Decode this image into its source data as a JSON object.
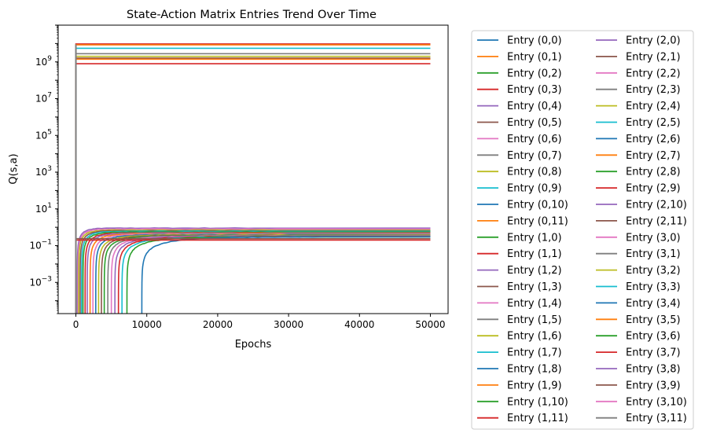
{
  "chart_data": {
    "type": "line",
    "title": "State-Action Matrix Entries Trend Over Time",
    "xlabel": "Epochs",
    "ylabel": "Q(s,a)",
    "xlim": [
      -2500,
      52500
    ],
    "ylim": [
      2e-05,
      100000000000
    ],
    "y_scale": "log",
    "grid": false,
    "legend_placement": "outside-right",
    "legend_columns": 2,
    "x_ticks": [
      0,
      10000,
      20000,
      30000,
      40000,
      50000
    ],
    "x_tick_labels": [
      "0",
      "10000",
      "20000",
      "30000",
      "40000",
      "50000"
    ],
    "y_ticks": [
      0.001,
      0.1,
      10,
      1000,
      100000,
      10000000,
      1000000000
    ],
    "y_tick_base": [
      "10",
      "10",
      "10",
      "10",
      "10",
      "10",
      "10"
    ],
    "y_tick_exp": [
      "−3",
      "−1",
      "1",
      "3",
      "5",
      "7",
      "9"
    ],
    "palette": [
      "#1f77b4",
      "#ff7f0e",
      "#2ca02c",
      "#d62728",
      "#9467bd",
      "#8c564b",
      "#e377c2",
      "#7f7f7f",
      "#bcbd22",
      "#17becf"
    ],
    "legend_entries": [
      "Entry (0,0)",
      "Entry (0,1)",
      "Entry (0,2)",
      "Entry (0,3)",
      "Entry (0,4)",
      "Entry (0,5)",
      "Entry (0,6)",
      "Entry (0,7)",
      "Entry (0,8)",
      "Entry (0,9)",
      "Entry (0,10)",
      "Entry (0,11)",
      "Entry (1,0)",
      "Entry (1,1)",
      "Entry (1,2)",
      "Entry (1,3)",
      "Entry (1,4)",
      "Entry (1,5)",
      "Entry (1,6)",
      "Entry (1,7)",
      "Entry (1,8)",
      "Entry (1,9)",
      "Entry (1,10)",
      "Entry (1,11)",
      "Entry (2,0)",
      "Entry (2,1)",
      "Entry (2,2)",
      "Entry (2,3)",
      "Entry (2,4)",
      "Entry (2,5)",
      "Entry (2,6)",
      "Entry (2,7)",
      "Entry (2,8)",
      "Entry (2,9)",
      "Entry (2,10)",
      "Entry (2,11)",
      "Entry (3,0)",
      "Entry (3,1)",
      "Entry (3,2)",
      "Entry (3,3)",
      "Entry (3,4)",
      "Entry (3,5)",
      "Entry (3,6)",
      "Entry (3,7)",
      "Entry (3,8)",
      "Entry (3,9)",
      "Entry (3,10)",
      "Entry (3,11)"
    ],
    "series_shapes": [
      {
        "kind": "high",
        "plateau": 9500000000,
        "color": "#d62728"
      },
      {
        "kind": "high",
        "plateau": 8500000000,
        "color": "#ff7f0e"
      },
      {
        "kind": "high",
        "plateau": 5500000000,
        "color": "#17becf"
      },
      {
        "kind": "high",
        "plateau": 2800000000,
        "color": "#7f7f7f"
      },
      {
        "kind": "high",
        "plateau": 2000000000,
        "color": "#bcbd22"
      },
      {
        "kind": "high",
        "plateau": 1600000000,
        "color": "#8c564b"
      },
      {
        "kind": "high",
        "plateau": 1400000000,
        "color": "#ff7f0e"
      },
      {
        "kind": "high",
        "plateau": 800000000,
        "color": "#d62728"
      },
      {
        "kind": "rise",
        "start": 200,
        "plateau": 0.9,
        "color": "#9467bd"
      },
      {
        "kind": "rise",
        "start": 300,
        "plateau": 0.8,
        "color": "#e377c2"
      },
      {
        "kind": "rise",
        "start": 400,
        "plateau": 0.7,
        "color": "#bcbd22"
      },
      {
        "kind": "rise",
        "start": 600,
        "plateau": 0.65,
        "color": "#8c564b"
      },
      {
        "kind": "rise",
        "start": 800,
        "plateau": 0.6,
        "color": "#17becf"
      },
      {
        "kind": "rise",
        "start": 1000,
        "plateau": 0.55,
        "color": "#2ca02c"
      },
      {
        "kind": "rise",
        "start": 1300,
        "plateau": 0.5,
        "color": "#d62728"
      },
      {
        "kind": "rise",
        "start": 1600,
        "plateau": 0.48,
        "color": "#9467bd"
      },
      {
        "kind": "rise",
        "start": 2000,
        "plateau": 0.45,
        "color": "#ff7f0e"
      },
      {
        "kind": "rise",
        "start": 2400,
        "plateau": 0.42,
        "color": "#e377c2"
      },
      {
        "kind": "rise",
        "start": 2800,
        "plateau": 0.4,
        "color": "#1f77b4"
      },
      {
        "kind": "rise",
        "start": 3200,
        "plateau": 0.38,
        "color": "#bcbd22"
      },
      {
        "kind": "rise",
        "start": 3600,
        "plateau": 0.36,
        "color": "#8c564b"
      },
      {
        "kind": "rise",
        "start": 4000,
        "plateau": 0.35,
        "color": "#2ca02c"
      },
      {
        "kind": "rise",
        "start": 4500,
        "plateau": 0.34,
        "color": "#7f7f7f"
      },
      {
        "kind": "rise",
        "start": 5000,
        "plateau": 0.33,
        "color": "#e377c2"
      },
      {
        "kind": "rise",
        "start": 5500,
        "plateau": 0.32,
        "color": "#9467bd"
      },
      {
        "kind": "rise",
        "start": 6000,
        "plateau": 0.31,
        "color": "#d62728"
      },
      {
        "kind": "rise",
        "start": 6500,
        "plateau": 0.3,
        "color": "#17becf"
      },
      {
        "kind": "rise",
        "start": 7200,
        "plateau": 0.3,
        "color": "#2ca02c"
      },
      {
        "kind": "rise",
        "start": 9300,
        "plateau": 0.3,
        "color": "#1f77b4"
      },
      {
        "kind": "flat",
        "plateau": 0.24,
        "color": "#8c564b"
      },
      {
        "kind": "flat",
        "plateau": 0.2,
        "color": "#d62728"
      }
    ]
  }
}
